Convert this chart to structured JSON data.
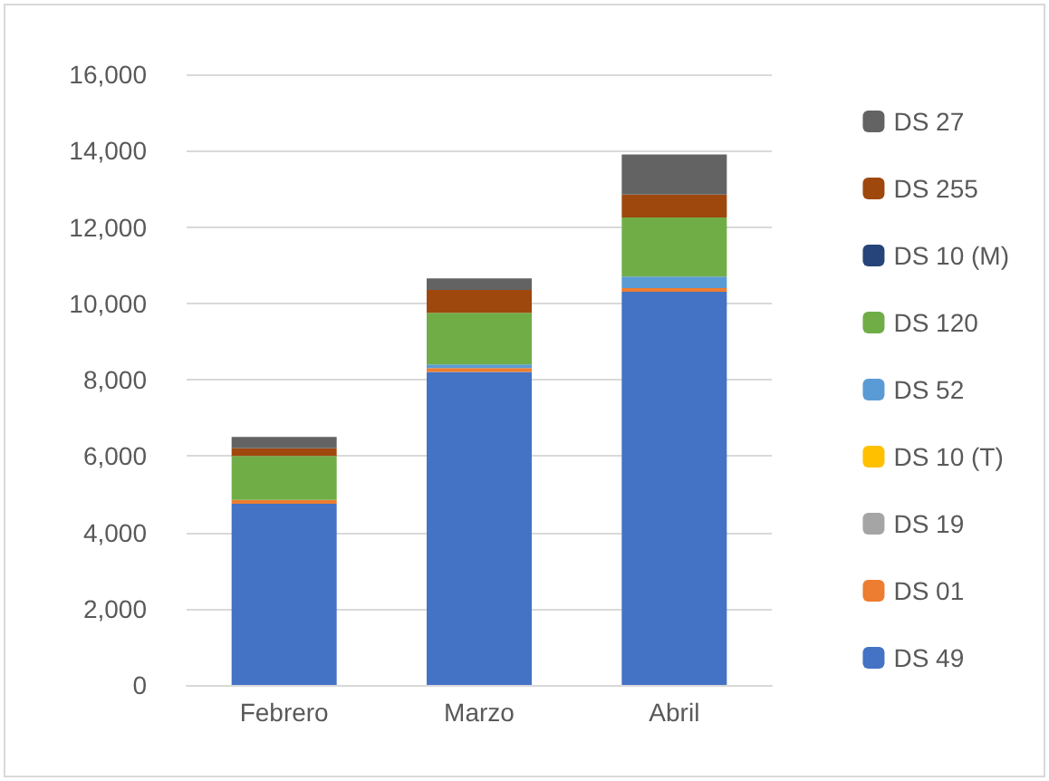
{
  "chart_data": {
    "type": "bar",
    "stacked": true,
    "categories": [
      "Febrero",
      "Marzo",
      "Abril"
    ],
    "series": [
      {
        "name": "DS 49",
        "color": "#4472c4",
        "values": [
          4750,
          8200,
          10300
        ]
      },
      {
        "name": "DS 01",
        "color": "#ed7d31",
        "values": [
          100,
          100,
          100
        ]
      },
      {
        "name": "DS 19",
        "color": "#a5a5a5",
        "values": [
          0,
          0,
          0
        ]
      },
      {
        "name": "DS 10 (T)",
        "color": "#ffc000",
        "values": [
          0,
          0,
          0
        ]
      },
      {
        "name": "DS 52",
        "color": "#5b9bd5",
        "values": [
          0,
          100,
          300
        ]
      },
      {
        "name": "DS 120",
        "color": "#70ad47",
        "values": [
          1150,
          1350,
          1550
        ]
      },
      {
        "name": "DS 10 (M)",
        "color": "#264478",
        "values": [
          0,
          0,
          0
        ]
      },
      {
        "name": "DS 255",
        "color": "#9e480e",
        "values": [
          200,
          600,
          600
        ]
      },
      {
        "name": "DS 27",
        "color": "#636363",
        "values": [
          300,
          300,
          1050
        ]
      }
    ],
    "ylim": [
      0,
      16000
    ],
    "yticks": [
      0,
      {
        "value": 2000,
        "label": "2,000"
      },
      {
        "value": 4000,
        "label": "4,000"
      },
      {
        "value": 6000,
        "label": "6,000"
      },
      {
        "value": 8000,
        "label": "8,000"
      },
      {
        "value": 10000,
        "label": "10,000"
      },
      {
        "value": 12000,
        "label": "12,000"
      },
      {
        "value": 14000,
        "label": "14,000"
      },
      {
        "value": 16000,
        "label": "16,000"
      }
    ],
    "grid": "y",
    "legend": "right"
  }
}
